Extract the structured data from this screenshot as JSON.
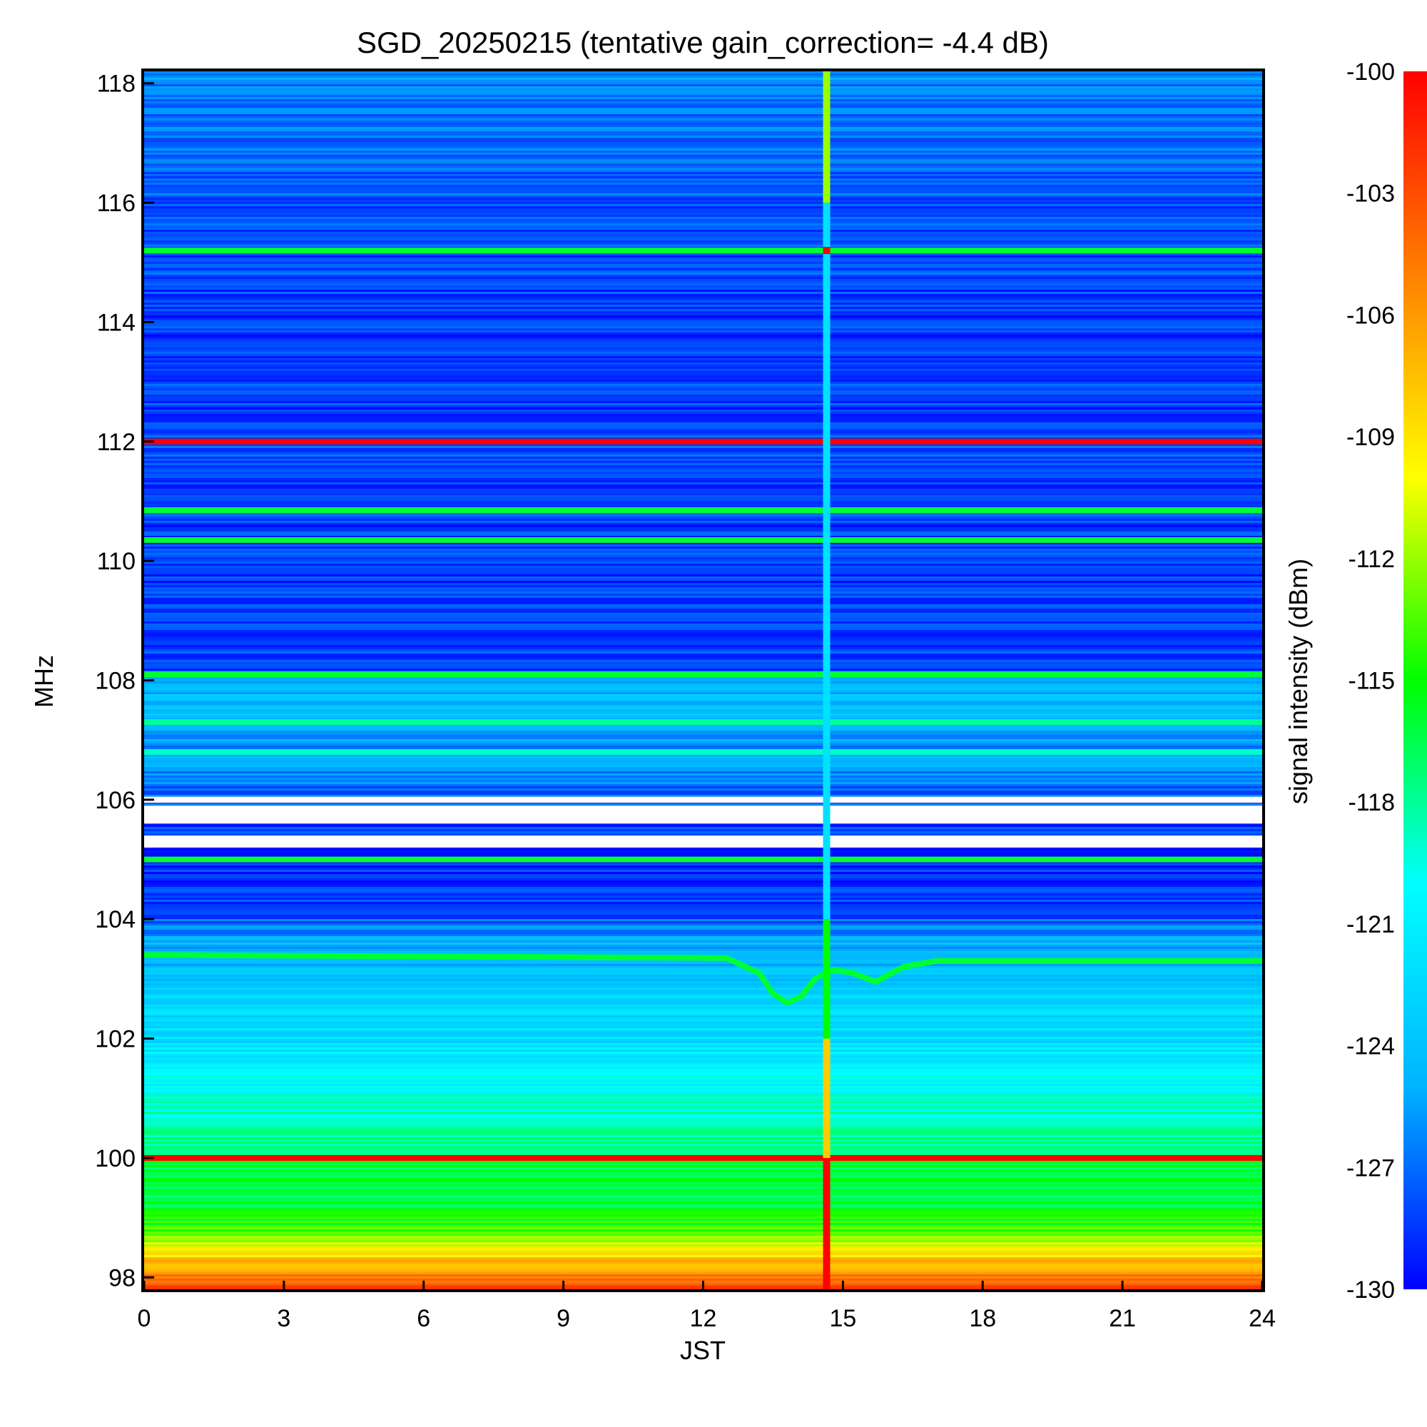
{
  "chart_data": {
    "type": "heatmap",
    "title": "SGD_20250215 (tentative gain_correction= -4.4 dB)",
    "xlabel": "JST",
    "ylabel": "MHz",
    "colorbar_label": "signal intensity (dBm)",
    "xlim": [
      0,
      24
    ],
    "ylim": [
      97.8,
      118.2
    ],
    "x_ticks": [
      0,
      3,
      6,
      9,
      12,
      15,
      18,
      21,
      24
    ],
    "x_tick_labels": [
      "0",
      "3",
      "6",
      "9",
      "12",
      "15",
      "18",
      "21",
      "24"
    ],
    "y_ticks": [
      98,
      100,
      102,
      104,
      106,
      108,
      110,
      112,
      114,
      116,
      118
    ],
    "y_tick_labels": [
      "98",
      "100",
      "102",
      "104",
      "106",
      "108",
      "110",
      "112",
      "114",
      "116",
      "118"
    ],
    "colorbar_range": [
      -130,
      -100
    ],
    "colorbar_ticks": [
      -100,
      -103,
      -106,
      -109,
      -112,
      -115,
      -118,
      -121,
      -124,
      -127,
      -130
    ],
    "colorbar_tick_labels": [
      "-100",
      "-103",
      "-106",
      "-109",
      "-112",
      "-115",
      "-118",
      "-121",
      "-124",
      "-127",
      "-130"
    ],
    "colormap": [
      "#0000ff",
      "#00b4ff",
      "#00ffff",
      "#00ff00",
      "#ffff00",
      "#ff8000",
      "#ff0000"
    ],
    "background_profile_mhz_dbm": [
      [
        97.8,
        -102
      ],
      [
        98.0,
        -105
      ],
      [
        98.3,
        -108
      ],
      [
        98.7,
        -113
      ],
      [
        99.2,
        -116
      ],
      [
        100.0,
        -116.5
      ],
      [
        100.5,
        -118
      ],
      [
        101.0,
        -119.5
      ],
      [
        101.5,
        -121
      ],
      [
        102.0,
        -122
      ],
      [
        102.5,
        -123
      ],
      [
        103.0,
        -124
      ],
      [
        103.6,
        -125
      ],
      [
        104.0,
        -127.5
      ],
      [
        105.0,
        -129
      ],
      [
        106.0,
        -127.5
      ],
      [
        106.5,
        -126
      ],
      [
        107.0,
        -125.5
      ],
      [
        107.5,
        -124.5
      ],
      [
        108.0,
        -124.5
      ],
      [
        108.1,
        -128
      ],
      [
        110.0,
        -128.5
      ],
      [
        112.0,
        -128
      ],
      [
        114.0,
        -128.5
      ],
      [
        116.0,
        -127.5
      ],
      [
        118.2,
        -126.5
      ]
    ],
    "carriers_mhz_dbm": [
      {
        "freq": 115.2,
        "dbm": -116
      },
      {
        "freq": 112.0,
        "dbm": -100
      },
      {
        "freq": 110.85,
        "dbm": -116
      },
      {
        "freq": 110.35,
        "dbm": -116
      },
      {
        "freq": 108.1,
        "dbm": -116
      },
      {
        "freq": 107.3,
        "dbm": -118
      },
      {
        "freq": 106.8,
        "dbm": -119
      },
      {
        "freq": 105.0,
        "dbm": -116
      },
      {
        "freq": 100.0,
        "dbm": -100
      }
    ],
    "gap_bands_mhz": [
      [
        105.2,
        105.4
      ],
      [
        105.6,
        105.9
      ],
      [
        105.95,
        106.05
      ]
    ],
    "drifting_carrier": {
      "dbm": -116,
      "points_jst_mhz": [
        [
          0,
          103.4
        ],
        [
          12.5,
          103.35
        ],
        [
          13.2,
          103.1
        ],
        [
          13.5,
          102.75
        ],
        [
          13.8,
          102.6
        ],
        [
          14.1,
          102.7
        ],
        [
          14.4,
          103.0
        ],
        [
          14.8,
          103.15
        ],
        [
          15.2,
          103.1
        ],
        [
          15.7,
          102.95
        ],
        [
          16.3,
          103.2
        ],
        [
          17.0,
          103.3
        ],
        [
          24,
          103.3
        ]
      ]
    },
    "vertical_event": {
      "jst": 14.65,
      "segments": [
        {
          "from_mhz": 97.8,
          "to_mhz": 100.0,
          "dbm": -100
        },
        {
          "from_mhz": 100.0,
          "to_mhz": 102.0,
          "dbm": -108
        },
        {
          "from_mhz": 102.0,
          "to_mhz": 104.0,
          "dbm": -115
        },
        {
          "from_mhz": 104.0,
          "to_mhz": 116.0,
          "dbm": -122
        },
        {
          "from_mhz": 116.0,
          "to_mhz": 118.2,
          "dbm": -112
        }
      ],
      "spot": {
        "mhz": 115.2,
        "dbm": -100
      }
    },
    "grid": false,
    "legend": "colorbar-right"
  }
}
